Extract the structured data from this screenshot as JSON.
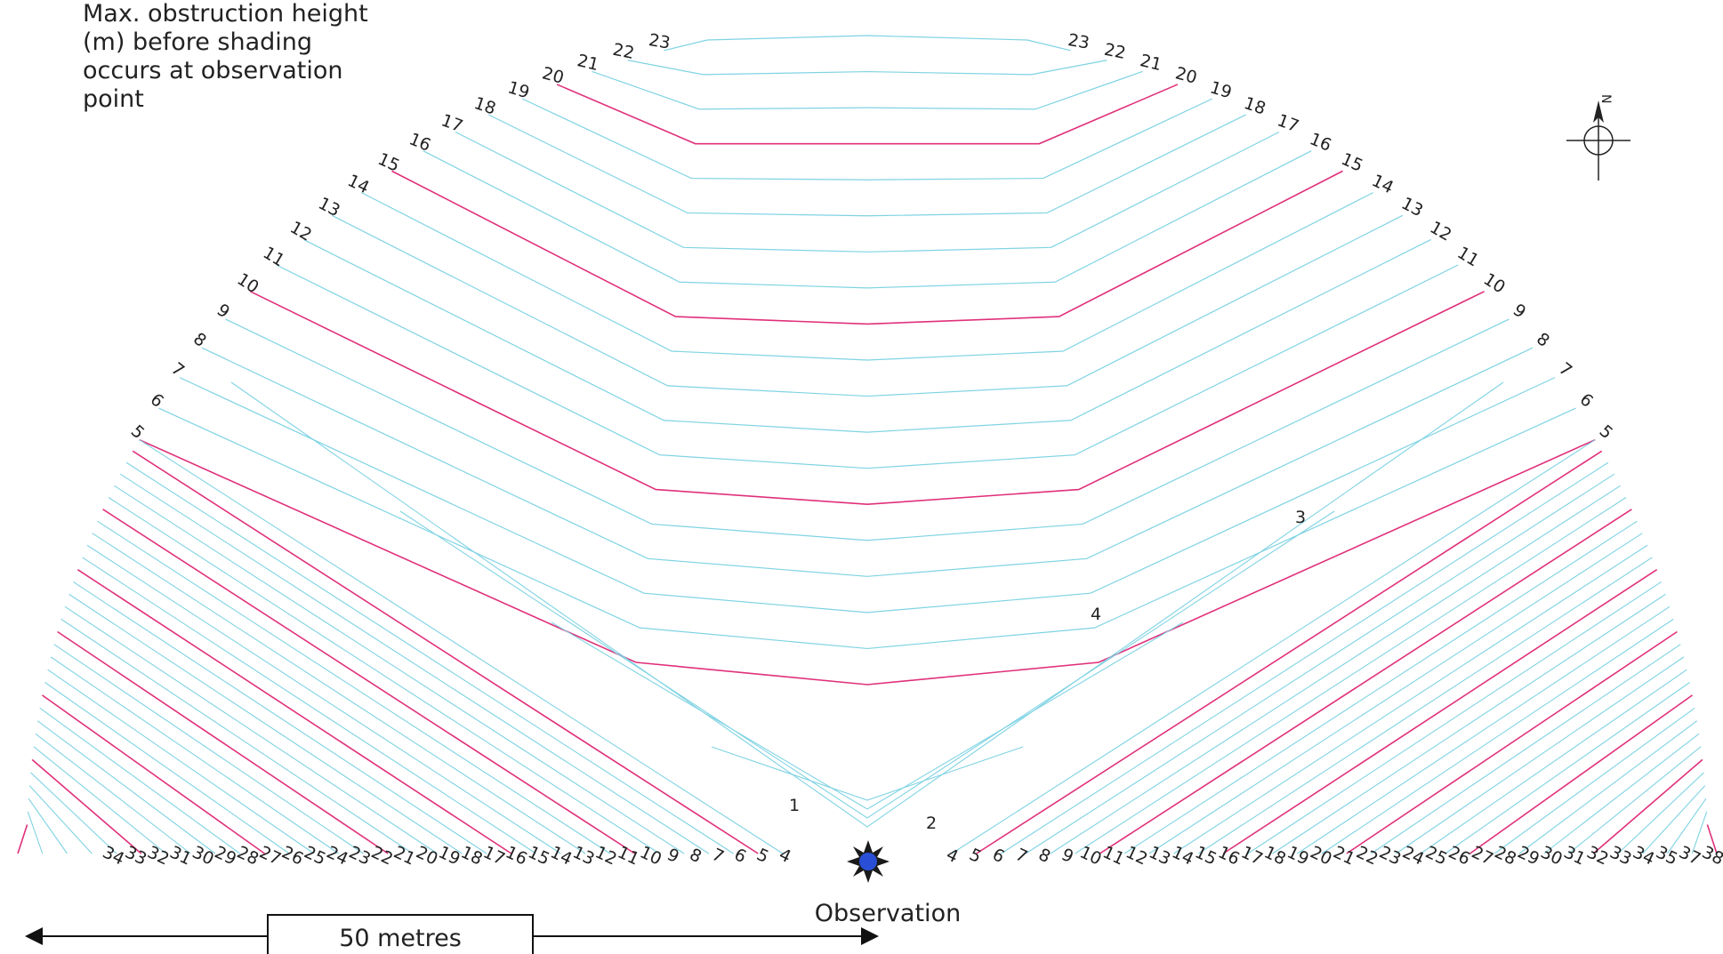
{
  "title": "Max. obstruction height\n(m) before shading\noccurs at observation\npoint",
  "observation_label": "Observation",
  "scale_label": "50 metres",
  "north_label": "N",
  "colors": {
    "contour": "#7fd3e3",
    "major_contour": "#e0307a",
    "marker": "#2a4fd6",
    "ink": "#222222"
  },
  "labels": {
    "top_left": [
      "23",
      "22",
      "21",
      "20",
      "19",
      "18",
      "17",
      "16",
      "15",
      "14",
      "13",
      "12",
      "11",
      "10",
      "9",
      "8",
      "7",
      "6",
      "5"
    ],
    "top_right": [
      "23",
      "22",
      "21",
      "20",
      "19",
      "18",
      "17",
      "16",
      "15",
      "14",
      "13",
      "12",
      "11",
      "10",
      "9",
      "8",
      "7",
      "6",
      "5"
    ],
    "bottom_left": [
      "34",
      "33",
      "32",
      "31",
      "30",
      "29",
      "28",
      "27",
      "26",
      "25",
      "24",
      "23",
      "22",
      "21",
      "20",
      "19",
      "18",
      "17",
      "16",
      "15",
      "14",
      "13",
      "12",
      "11",
      "10",
      "9",
      "8",
      "7",
      "6",
      "5",
      "4"
    ],
    "bottom_right": [
      "4",
      "5",
      "6",
      "7",
      "8",
      "9",
      "10",
      "11",
      "12",
      "13",
      "14",
      "15",
      "16",
      "17",
      "18",
      "19",
      "20",
      "21",
      "22",
      "23",
      "24",
      "25",
      "26",
      "27",
      "28",
      "29",
      "30",
      "31",
      "32",
      "33",
      "34",
      "35",
      "37",
      "38"
    ],
    "interior": [
      "1",
      "2",
      "3",
      "4"
    ]
  }
}
